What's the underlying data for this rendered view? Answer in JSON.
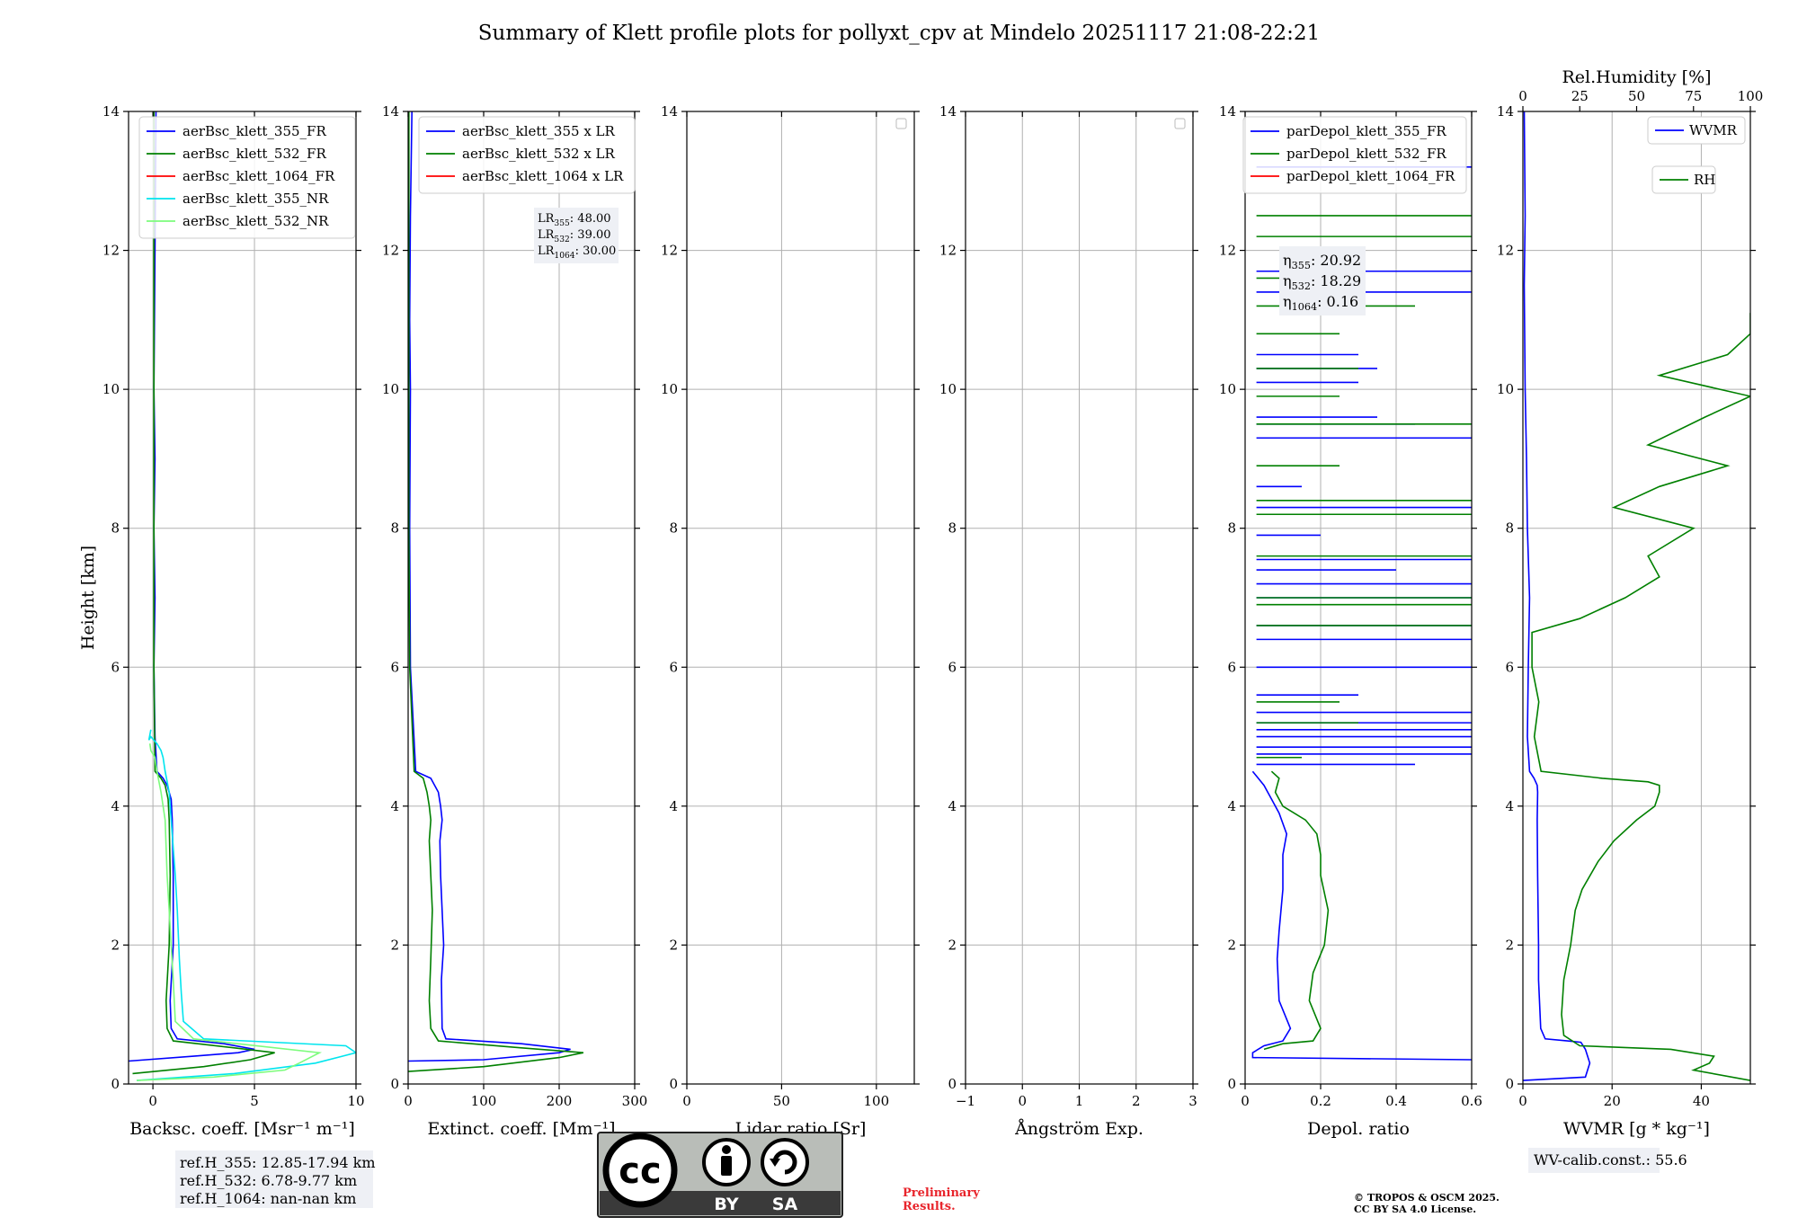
{
  "title": "Summary of Klett profile plots for pollyxt_cpv at Mindelo 20251117 21:08-22:21",
  "chart_data": [
    {
      "type": "line",
      "id": "backscatter",
      "xlabel": "Backsc. coeff. [Msr⁻¹ m⁻¹]",
      "ylabel": "Height [km]",
      "xlim": [
        -1.2,
        10
      ],
      "ylim": [
        0,
        14
      ],
      "xticks": [
        0,
        5,
        10
      ],
      "yticks": [
        0,
        2,
        4,
        6,
        8,
        10,
        12,
        14
      ],
      "grid": true,
      "legend_position": "top-right",
      "series": [
        {
          "name": "aerBsc_klett_355_FR",
          "color": "#0000ff",
          "x": [
            -1.2,
            2,
            4.2,
            5.0,
            3.5,
            1.2,
            0.9,
            0.85,
            1.0,
            1.0,
            0.95,
            0.9,
            0.7,
            0.5,
            0.2,
            0.1,
            0.05,
            0.1,
            0.05,
            0.1,
            0.05,
            0.1,
            0.15
          ],
          "y": [
            0.33,
            0.4,
            0.45,
            0.5,
            0.58,
            0.65,
            0.8,
            1.2,
            2.0,
            3.0,
            3.8,
            4.1,
            4.3,
            4.4,
            4.5,
            5.0,
            6.0,
            7.0,
            8.0,
            9.0,
            10.0,
            12.0,
            14.0
          ]
        },
        {
          "name": "aerBsc_klett_532_FR",
          "color": "#008000",
          "x": [
            -1.0,
            2.5,
            4.8,
            6.0,
            4.0,
            1.0,
            0.7,
            0.65,
            0.8,
            0.85,
            0.8,
            0.75,
            0.6,
            0.4,
            0.1,
            0.05,
            0.05,
            0.05,
            0.05,
            0.05
          ],
          "y": [
            0.15,
            0.25,
            0.35,
            0.45,
            0.52,
            0.62,
            0.8,
            1.2,
            2.0,
            3.0,
            3.8,
            4.1,
            4.3,
            4.4,
            4.5,
            6.0,
            8.0,
            10.0,
            12.0,
            14.0
          ]
        },
        {
          "name": "aerBsc_klett_1064_FR",
          "color": "#ff0000",
          "x": [],
          "y": []
        },
        {
          "name": "aerBsc_klett_355_NR",
          "color": "#00e5ee",
          "x": [
            -0.8,
            4,
            8,
            10,
            9.5,
            2.5,
            1.5,
            1.4,
            1.3,
            1.2,
            1.1,
            0.9,
            0.8,
            0.6,
            0.5,
            0.4,
            0.2,
            -0.1,
            -0.2,
            -0.1
          ],
          "y": [
            0.05,
            0.15,
            0.3,
            0.45,
            0.55,
            0.65,
            0.9,
            1.3,
            1.8,
            2.5,
            3.0,
            3.8,
            4.2,
            4.5,
            4.7,
            4.8,
            4.9,
            5.0,
            4.95,
            5.1
          ]
        },
        {
          "name": "aerBsc_klett_532_NR",
          "color": "#7cfc7c",
          "x": [
            -0.8,
            3,
            6.5,
            7.2,
            8.2,
            2.0,
            1.1,
            1.0,
            0.9,
            0.8,
            0.7,
            0.6,
            0.4,
            0.2,
            0.1,
            -0.1,
            -0.15
          ],
          "y": [
            0.05,
            0.1,
            0.2,
            0.3,
            0.45,
            0.65,
            0.9,
            1.5,
            2.0,
            2.5,
            3.0,
            3.8,
            4.2,
            4.5,
            4.7,
            4.8,
            4.9
          ]
        }
      ]
    },
    {
      "type": "line",
      "id": "extinction",
      "xlabel": "Extinct. coeff. [Mm⁻¹]",
      "xlim": [
        0,
        300
      ],
      "ylim": [
        0,
        14
      ],
      "xticks": [
        0,
        100,
        200,
        300
      ],
      "yticks": [
        0,
        2,
        4,
        6,
        8,
        10,
        12,
        14
      ],
      "grid": true,
      "legend_position": "top-right",
      "series": [
        {
          "name": "aerBsc_klett_355 x LR",
          "color": "#0000ff",
          "x": [
            0,
            100,
            200,
            215,
            150,
            50,
            45,
            44,
            47,
            45,
            43,
            42,
            45,
            43,
            40,
            30,
            10,
            3,
            2,
            3,
            2,
            3,
            5
          ],
          "y": [
            0.33,
            0.35,
            0.45,
            0.5,
            0.58,
            0.65,
            0.8,
            1.5,
            2.0,
            2.5,
            3.0,
            3.5,
            3.8,
            4.0,
            4.2,
            4.4,
            4.5,
            6.0,
            8.0,
            10.0,
            11.0,
            12.5,
            14.0
          ]
        },
        {
          "name": "aerBsc_klett_532 x LR",
          "color": "#008000",
          "x": [
            0,
            100,
            200,
            232,
            150,
            40,
            30,
            28,
            30,
            32,
            30,
            28,
            30,
            28,
            25,
            20,
            8,
            2,
            1,
            1,
            1,
            1
          ],
          "y": [
            0.18,
            0.25,
            0.38,
            0.45,
            0.52,
            0.62,
            0.8,
            1.2,
            1.8,
            2.5,
            3.0,
            3.5,
            3.8,
            4.0,
            4.2,
            4.4,
            4.5,
            6.0,
            8.0,
            10.0,
            12.0,
            14.0
          ]
        },
        {
          "name": "aerBsc_klett_1064 x LR",
          "color": "#ff0000",
          "x": [],
          "y": []
        }
      ],
      "annotation": [
        {
          "label": "LR",
          "sub": "355",
          "value": ": 48.00"
        },
        {
          "label": "LR",
          "sub": "532",
          "value": ": 39.00"
        },
        {
          "label": "LR",
          "sub": "1064",
          "value": ": 30.00"
        }
      ]
    },
    {
      "type": "line",
      "id": "lidar_ratio",
      "xlabel": "Lidar ratio [Sr]",
      "xlim": [
        0,
        120
      ],
      "ylim": [
        0,
        14
      ],
      "xticks": [
        0,
        50,
        100
      ],
      "yticks": [
        0,
        2,
        4,
        6,
        8,
        10,
        12,
        14
      ],
      "grid": true,
      "legend_position": "top-right",
      "series": []
    },
    {
      "type": "line",
      "id": "angstrom",
      "xlabel": "Ångström Exp.",
      "xlim": [
        -1,
        3
      ],
      "ylim": [
        0,
        14
      ],
      "xticks": [
        -1,
        0,
        1,
        2,
        3
      ],
      "yticks": [
        0,
        2,
        4,
        6,
        8,
        10,
        12,
        14
      ],
      "grid": true,
      "legend_position": "top-right",
      "series": []
    },
    {
      "type": "line",
      "id": "depol",
      "xlabel": "Depol. ratio",
      "xlim": [
        0,
        0.6
      ],
      "ylim": [
        0,
        14
      ],
      "xticks": [
        0.0,
        0.2,
        0.4,
        0.6
      ],
      "yticks": [
        0,
        2,
        4,
        6,
        8,
        10,
        12,
        14
      ],
      "grid": true,
      "legend_position": "top-right",
      "series": [
        {
          "name": "parDepol_klett_355_FR",
          "color": "#0000ff",
          "x": [
            0.6,
            0.02,
            0.02,
            0.05,
            0.1,
            0.12,
            0.09,
            0.085,
            0.09,
            0.1,
            0.1,
            0.11,
            0.09,
            0.07,
            0.05,
            0.02
          ],
          "y": [
            0.35,
            0.38,
            0.45,
            0.55,
            0.62,
            0.8,
            1.2,
            1.8,
            2.2,
            2.8,
            3.3,
            3.6,
            3.9,
            4.1,
            4.3,
            4.5
          ],
          "spikes_y": [
            4.6,
            4.75,
            4.85,
            5.0,
            5.1,
            5.2,
            5.35,
            5.6,
            6.0,
            6.4,
            6.6,
            7.0,
            7.2,
            7.4,
            7.55,
            7.9,
            8.3,
            8.6,
            9.3,
            9.5,
            9.6,
            10.1,
            10.3,
            10.5,
            11.4,
            11.7,
            13.2
          ],
          "spikes_x": [
            0.45,
            0.6,
            0.6,
            0.6,
            0.6,
            0.6,
            0.6,
            0.3,
            0.6,
            0.6,
            0.6,
            0.6,
            0.6,
            0.4,
            0.6,
            0.2,
            0.6,
            0.15,
            0.6,
            0.45,
            0.35,
            0.3,
            0.35,
            0.3,
            0.6,
            0.6,
            0.6
          ]
        },
        {
          "name": "parDepol_klett_532_FR",
          "color": "#008000",
          "x": [
            0.05,
            0.1,
            0.18,
            0.2,
            0.17,
            0.18,
            0.21,
            0.22,
            0.2,
            0.2,
            0.19,
            0.16,
            0.1,
            0.08,
            0.09,
            0.07
          ],
          "y": [
            0.5,
            0.58,
            0.62,
            0.8,
            1.2,
            1.6,
            2.0,
            2.5,
            3.0,
            3.3,
            3.6,
            3.8,
            4.0,
            4.2,
            4.4,
            4.5
          ],
          "spikes_y": [
            4.7,
            5.2,
            5.5,
            6.6,
            6.9,
            7.0,
            7.6,
            8.2,
            8.4,
            8.9,
            9.5,
            9.9,
            10.3,
            10.8,
            11.2,
            11.6,
            12.2,
            12.5
          ],
          "spikes_x": [
            0.15,
            0.3,
            0.25,
            0.6,
            0.6,
            0.6,
            0.6,
            0.6,
            0.6,
            0.25,
            0.6,
            0.25,
            0.3,
            0.25,
            0.45,
            0.3,
            0.6,
            0.6
          ]
        },
        {
          "name": "parDepol_klett_1064_FR",
          "color": "#ff0000",
          "x": [],
          "y": []
        }
      ],
      "annotation": [
        {
          "label": "η",
          "sub": "355",
          "value": ": 20.92"
        },
        {
          "label": "η",
          "sub": "532",
          "value": ": 18.29"
        },
        {
          "label": "η",
          "sub": "1064",
          "value": ": 0.16"
        }
      ]
    },
    {
      "type": "line",
      "id": "wvmr",
      "xlabel": "WVMR [g * kg⁻¹]",
      "x2label": "Rel.Humidity [%]",
      "xlim": [
        0,
        51
      ],
      "x2lim": [
        0,
        100
      ],
      "ylim": [
        0,
        14
      ],
      "xticks": [
        0,
        20,
        40
      ],
      "x2ticks": [
        0,
        25,
        50,
        75,
        100
      ],
      "yticks": [
        0,
        2,
        4,
        6,
        8,
        10,
        12,
        14
      ],
      "grid": true,
      "series": [
        {
          "name": "WVMR",
          "color": "#0000ff",
          "axis": "x",
          "x": [
            0,
            14,
            15,
            14,
            13,
            10,
            5,
            4,
            3.5,
            3.5,
            3.3,
            3.2,
            3.3,
            3.2,
            2.5,
            1.5,
            1.0,
            1.2,
            1.5,
            1.0,
            0.8,
            0.5,
            0.3,
            0.5,
            0.3
          ],
          "y": [
            0.05,
            0.1,
            0.3,
            0.5,
            0.6,
            0.62,
            0.65,
            0.8,
            1.5,
            2.0,
            3.0,
            3.8,
            4.2,
            4.3,
            4.4,
            4.5,
            5.0,
            6.0,
            7.0,
            8.0,
            9.0,
            10.0,
            11.5,
            12.5,
            14.0
          ]
        },
        {
          "name": "RH",
          "color": "#008000",
          "axis": "x2",
          "x": [
            100,
            75,
            82,
            84,
            65,
            25,
            18,
            17,
            18,
            21,
            23,
            26,
            33,
            40,
            50,
            58,
            60,
            60,
            55,
            35,
            8,
            5,
            7,
            4,
            4,
            25,
            45,
            60,
            55,
            75,
            40,
            60,
            90,
            55,
            80,
            100,
            60,
            90,
            100,
            100,
            100
          ],
          "y": [
            0.05,
            0.2,
            0.3,
            0.4,
            0.5,
            0.55,
            0.7,
            1.0,
            1.5,
            2.0,
            2.5,
            2.8,
            3.2,
            3.5,
            3.8,
            4.0,
            4.2,
            4.3,
            4.35,
            4.4,
            4.5,
            5.0,
            5.5,
            6.0,
            6.5,
            6.7,
            7.0,
            7.3,
            7.6,
            8.0,
            8.3,
            8.6,
            8.9,
            9.2,
            9.6,
            9.9,
            10.2,
            10.5,
            10.8,
            11.0,
            11.1
          ]
        }
      ]
    }
  ],
  "ref_box": {
    "lines": [
      "ref.H_355: 12.85-17.94 km",
      "ref.H_532: 6.78-9.77 km",
      "ref.H_1064: nan-nan km"
    ]
  },
  "cc_badge": {
    "by": "BY",
    "sa": "SA",
    "cc": "cc"
  },
  "preliminary": {
    "line1": "Preliminary",
    "line2": "Results."
  },
  "copyright": {
    "line1": "© TROPOS & OSCM 2025.",
    "line2": "CC BY SA 4.0 License."
  },
  "wv_calib": "WV-calib.const.: 55.6",
  "colors": {
    "blue": "#0000ff",
    "green": "#008000",
    "red": "#ff0000",
    "cyan": "#00e5ee",
    "lightgreen": "#7cfc7c",
    "preliminary": "#e8242b",
    "badge_bg": "#b9bdb8",
    "badge_dark": "#3a3a3a"
  }
}
